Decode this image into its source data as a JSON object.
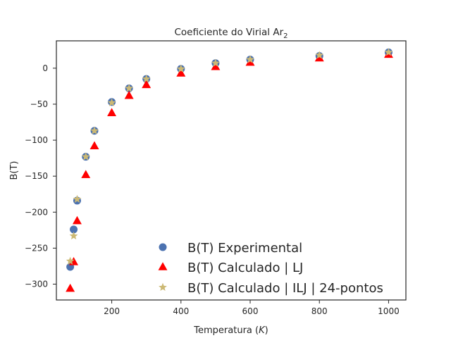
{
  "chart_data": {
    "type": "scatter",
    "title": "Coeficiente do Virial Ar",
    "title_subscript": "2",
    "xlabel": "Temperatura (",
    "xlabel_var": "K",
    "xlabel_end": ")",
    "ylabel": "B(T)",
    "xlim": [
      40,
      1050
    ],
    "ylim": [
      -322,
      38
    ],
    "xticks": [
      200,
      400,
      600,
      800,
      1000
    ],
    "yticks": [
      0,
      -50,
      -100,
      -150,
      -200,
      -250,
      -300
    ],
    "xtick_labels": [
      "200",
      "400",
      "600",
      "800",
      "1000"
    ],
    "ytick_labels": [
      "0",
      "−50",
      "−100",
      "−150",
      "−200",
      "−250",
      "−300"
    ],
    "legend_position": "lower-right",
    "series": [
      {
        "name": "B(T) Experimental",
        "marker": "circle",
        "color": "#4c72b0",
        "x": [
          80,
          90,
          100,
          125,
          150,
          200,
          250,
          300,
          400,
          500,
          600,
          800,
          1000
        ],
        "y": [
          -276,
          -224,
          -184,
          -123,
          -87,
          -47,
          -28,
          -15,
          -1,
          7,
          12,
          17,
          22
        ]
      },
      {
        "name": "B(T) Calculado | LJ",
        "marker": "triangle",
        "color": "#ff0000",
        "x": [
          80,
          90,
          100,
          125,
          150,
          200,
          250,
          300,
          400,
          500,
          600,
          800,
          1000
        ],
        "y": [
          -306,
          -269,
          -212,
          -148,
          -108,
          -62,
          -38,
          -23,
          -7,
          2,
          8,
          14,
          19
        ]
      },
      {
        "name": "B(T) Calculado | ILJ | 24-pontos",
        "marker": "star",
        "color": "#ccb974",
        "x": [
          80,
          90,
          100,
          125,
          150,
          200,
          250,
          300,
          400,
          500,
          600,
          800,
          1000
        ],
        "y": [
          -268,
          -233,
          -182,
          -123,
          -87,
          -48,
          -28,
          -15,
          -1,
          7,
          12,
          18,
          22
        ]
      }
    ]
  }
}
